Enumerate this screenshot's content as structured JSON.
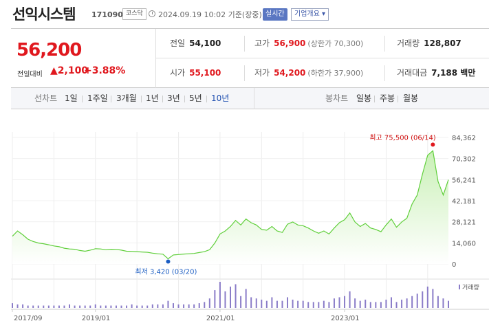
{
  "header": {
    "name": "선익시스템",
    "code": "171090",
    "market": "코스닥",
    "timestamp": "2024.09.19 10:02 기준(장중)",
    "realtime_label": "실시간",
    "company_label": "기업개요 ▾"
  },
  "quote": {
    "price": "56,200",
    "prev_label": "전일대비",
    "change": "▲2,100",
    "change_pct": "+3.88%",
    "prev_close_label": "전일",
    "prev_close": "54,100",
    "high_label": "고가",
    "high": "56,900",
    "upper_limit": "(상한가 70,300)",
    "volume_label": "거래량",
    "volume": "128,807",
    "open_label": "시가",
    "open": "55,100",
    "low_label": "저가",
    "low": "54,200",
    "lower_limit": "(하한가 37,900)",
    "amount_label": "거래대금",
    "amount": "7,188 백만"
  },
  "tabs": {
    "line_label": "선차트",
    "periods": [
      "1일",
      "1주일",
      "3개월",
      "1년",
      "3년",
      "5년",
      "10년"
    ],
    "active_period": "10년",
    "candle_label": "봉차트",
    "candles": [
      "일봉",
      "주봉",
      "월봉"
    ]
  },
  "colors": {
    "line": "#5fcf3a",
    "area_top": "#c9f0b6",
    "up": "#e0181e",
    "down": "#1c5ec3",
    "volume": "#8a7cc8"
  },
  "chart_data": {
    "type": "area",
    "x_start": "2017-09",
    "x_end": "2024-09",
    "x": [
      "2017-09",
      "2017-10",
      "2017-11",
      "2017-12",
      "2018-01",
      "2018-02",
      "2018-03",
      "2018-04",
      "2018-05",
      "2018-06",
      "2018-07",
      "2018-08",
      "2018-09",
      "2018-10",
      "2018-11",
      "2018-12",
      "2019-01",
      "2019-02",
      "2019-03",
      "2019-04",
      "2019-05",
      "2019-06",
      "2019-07",
      "2019-08",
      "2019-09",
      "2019-10",
      "2019-11",
      "2019-12",
      "2020-01",
      "2020-02",
      "2020-03",
      "2020-04",
      "2020-05",
      "2020-06",
      "2020-07",
      "2020-08",
      "2020-09",
      "2020-10",
      "2020-11",
      "2020-12",
      "2021-01",
      "2021-02",
      "2021-03",
      "2021-04",
      "2021-05",
      "2021-06",
      "2021-07",
      "2021-08",
      "2021-09",
      "2021-10",
      "2021-11",
      "2021-12",
      "2022-01",
      "2022-02",
      "2022-03",
      "2022-04",
      "2022-05",
      "2022-06",
      "2022-07",
      "2022-08",
      "2022-09",
      "2022-10",
      "2022-11",
      "2022-12",
      "2023-01",
      "2023-02",
      "2023-03",
      "2023-04",
      "2023-05",
      "2023-06",
      "2023-07",
      "2023-08",
      "2023-09",
      "2023-10",
      "2023-11",
      "2023-12",
      "2024-01",
      "2024-02",
      "2024-03",
      "2024-04",
      "2024-05",
      "2024-06",
      "2024-07",
      "2024-08",
      "2024-09"
    ],
    "values": [
      18500,
      22000,
      19500,
      16500,
      15000,
      14000,
      13500,
      12800,
      12000,
      11500,
      10500,
      10000,
      9800,
      9000,
      8500,
      9200,
      10200,
      10000,
      9500,
      9800,
      9700,
      9200,
      8500,
      8400,
      8200,
      8000,
      7800,
      7200,
      6800,
      6500,
      3420,
      6000,
      6300,
      6600,
      6800,
      7000,
      7600,
      8200,
      9500,
      14000,
      20000,
      22000,
      25000,
      29000,
      26000,
      30000,
      27500,
      26000,
      23000,
      22500,
      25000,
      22000,
      21000,
      26500,
      28000,
      26000,
      25500,
      24000,
      22000,
      20500,
      22000,
      20000,
      24000,
      27500,
      29500,
      34000,
      28000,
      25000,
      27000,
      24000,
      23000,
      21500,
      26000,
      30000,
      24500,
      28000,
      30500,
      40000,
      46000,
      60000,
      72500,
      75500,
      55000,
      46000,
      56200
    ],
    "ylim": [
      0,
      84362
    ],
    "y_ticks": [
      "84,362",
      "70,302",
      "56,241",
      "42,181",
      "28,121",
      "14,060",
      "0"
    ],
    "x_ticks": [
      "2017/09",
      "2019/01",
      "2021/01",
      "2023/01"
    ],
    "max_label": "최고 75,500 (06/14)",
    "min_label": "최저 3,420 (03/20)",
    "volume_legend": "거래량",
    "volume_series": [
      4,
      3,
      3,
      2,
      2,
      2,
      2,
      2,
      2,
      2,
      2,
      3,
      2,
      2,
      2,
      2,
      3,
      2,
      2,
      2,
      2,
      2,
      2,
      3,
      2,
      2,
      2,
      3,
      3,
      3,
      6,
      4,
      3,
      3,
      3,
      3,
      4,
      5,
      8,
      15,
      22,
      14,
      18,
      20,
      10,
      16,
      9,
      8,
      7,
      6,
      9,
      6,
      6,
      9,
      7,
      6,
      6,
      5,
      5,
      5,
      6,
      5,
      8,
      9,
      10,
      14,
      8,
      6,
      7,
      5,
      5,
      5,
      7,
      9,
      5,
      7,
      8,
      10,
      12,
      14,
      18,
      16,
      10,
      8,
      6
    ]
  }
}
